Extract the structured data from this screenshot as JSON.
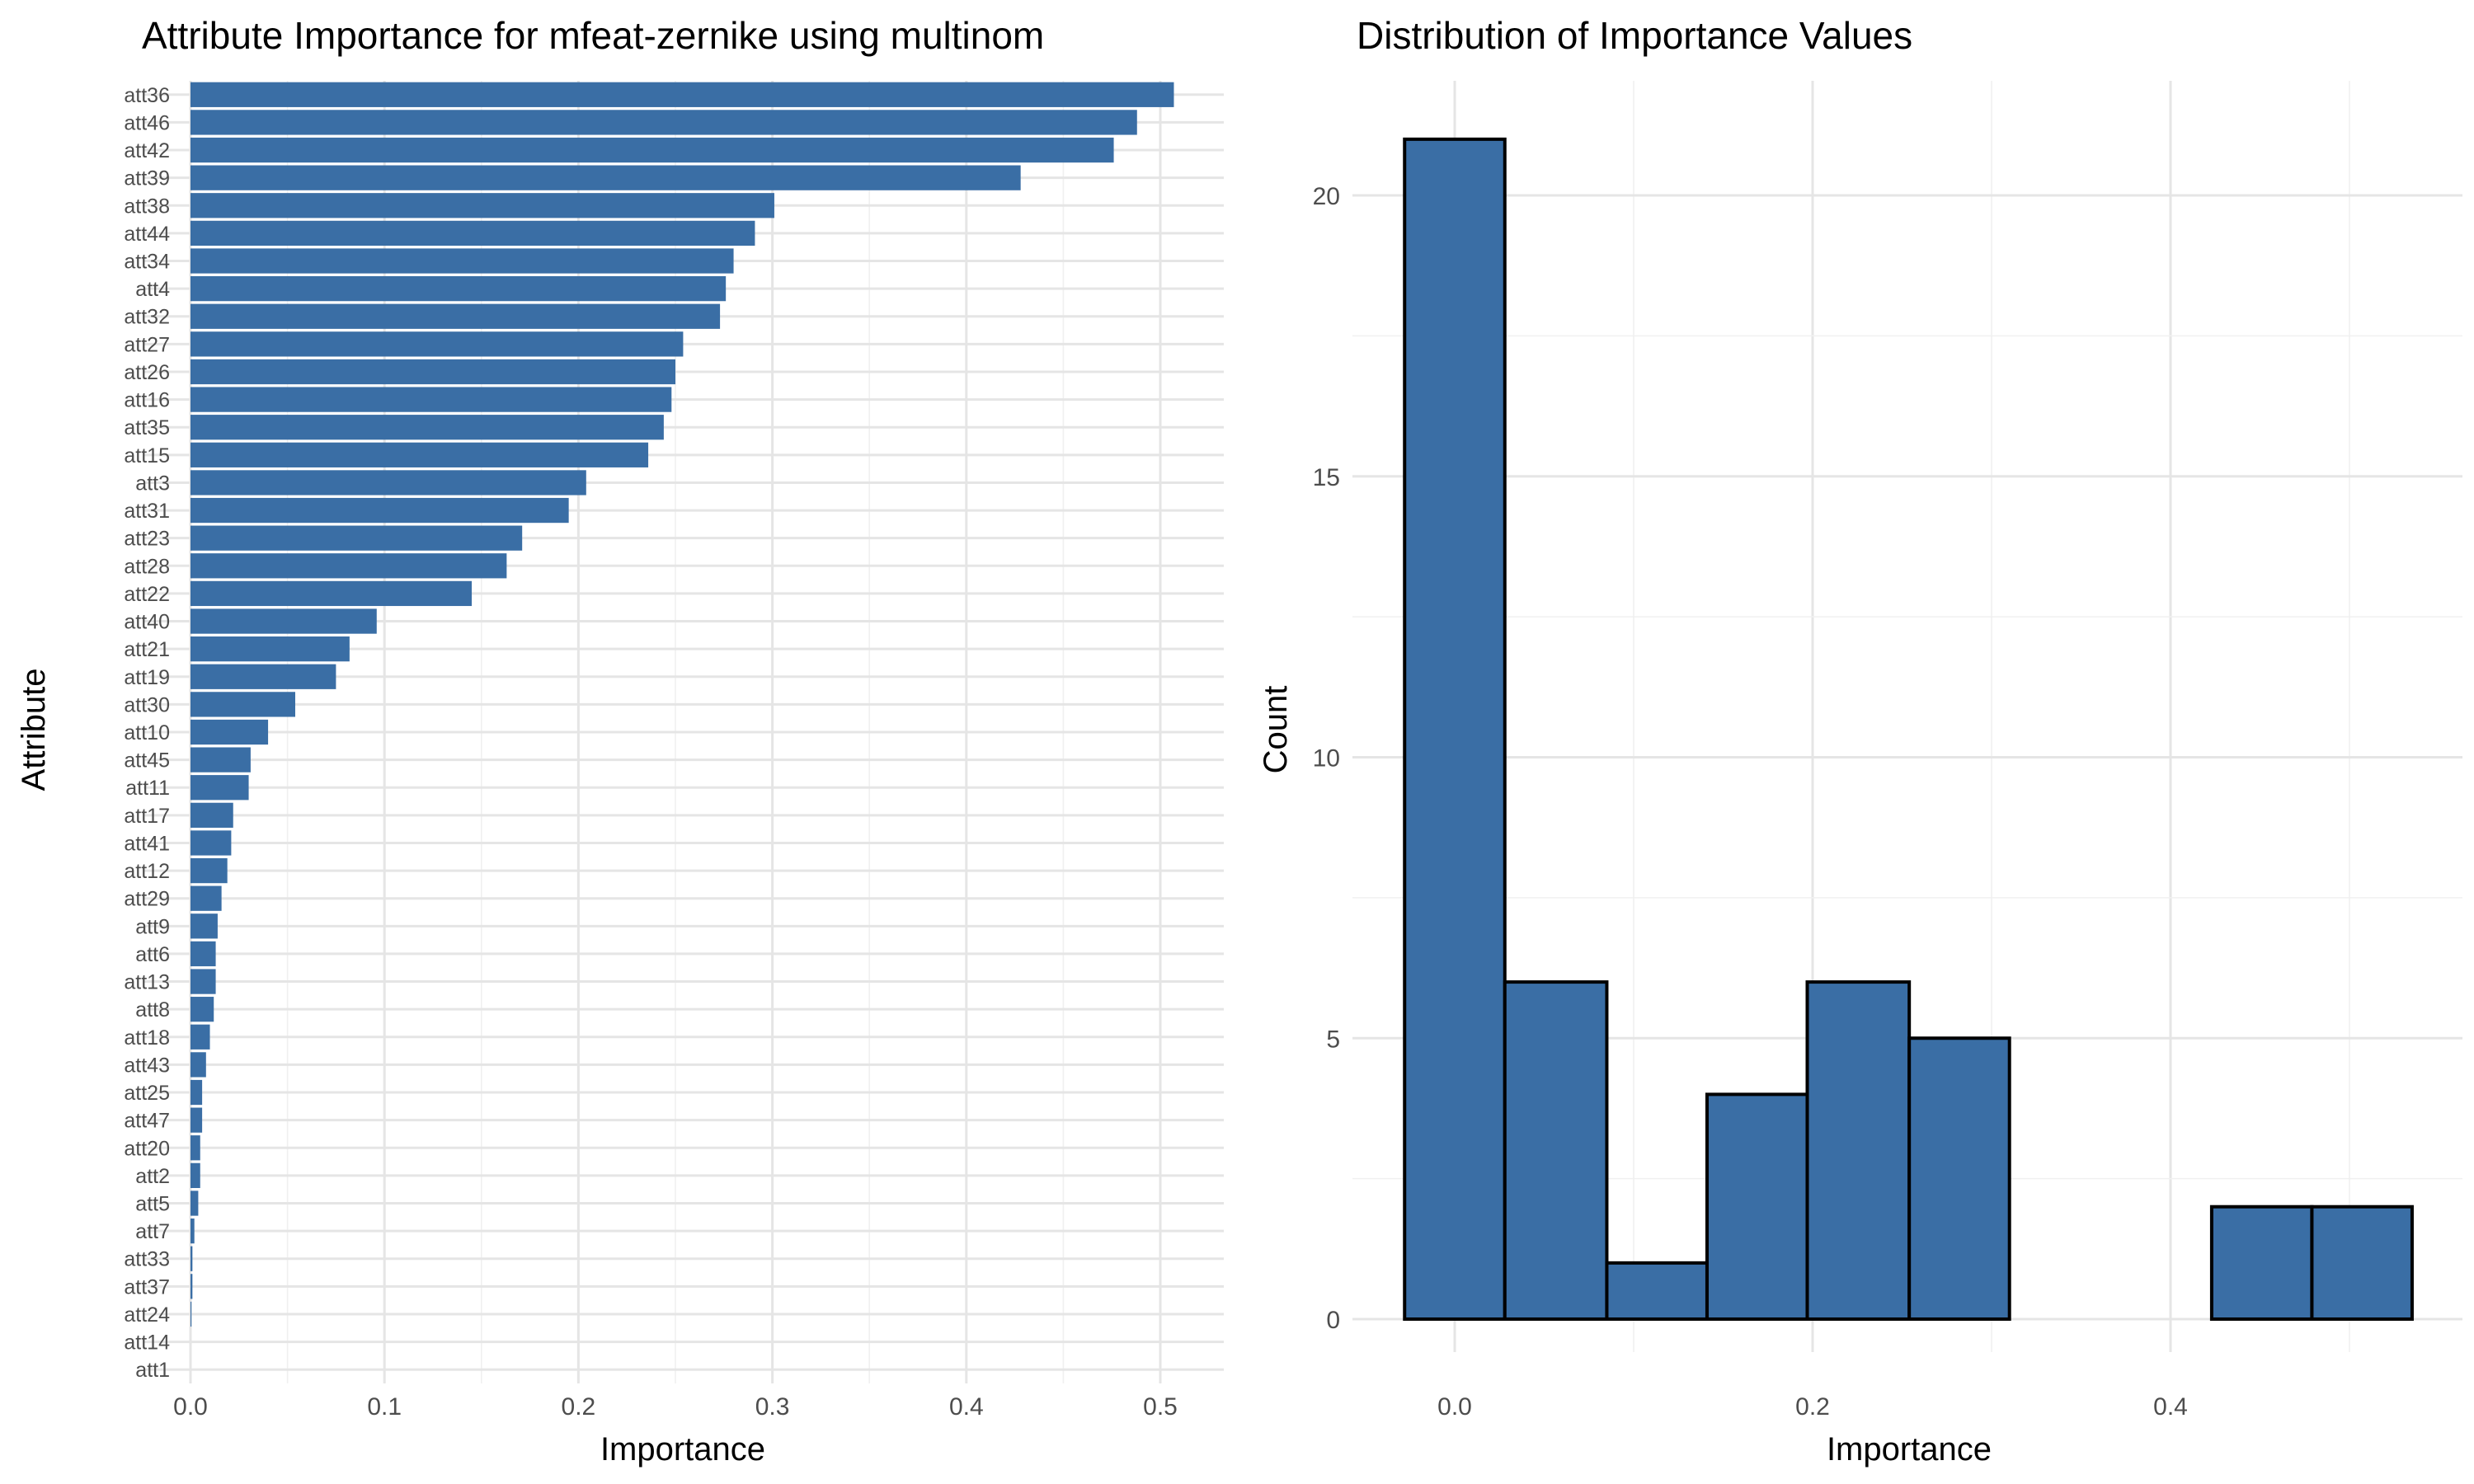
{
  "chart_data": [
    {
      "type": "bar",
      "orientation": "horizontal",
      "title": "Attribute Importance for mfeat-zernike using multinom",
      "xlabel": "Importance",
      "ylabel": "Attribute",
      "xlim": [
        0,
        0.53
      ],
      "x_ticks": [
        "0.0",
        "0.1",
        "0.2",
        "0.3",
        "0.4",
        "0.5"
      ],
      "bar_color": "#3a6ea5",
      "grid": true,
      "categories": [
        "att36",
        "att46",
        "att42",
        "att39",
        "att38",
        "att44",
        "att34",
        "att4",
        "att32",
        "att27",
        "att26",
        "att16",
        "att35",
        "att15",
        "att3",
        "att31",
        "att23",
        "att28",
        "att22",
        "att40",
        "att21",
        "att19",
        "att30",
        "att10",
        "att45",
        "att11",
        "att17",
        "att41",
        "att12",
        "att29",
        "att9",
        "att6",
        "att13",
        "att8",
        "att18",
        "att43",
        "att25",
        "att47",
        "att20",
        "att2",
        "att5",
        "att7",
        "att33",
        "att37",
        "att24",
        "att14",
        "att1"
      ],
      "values": [
        0.507,
        0.488,
        0.476,
        0.428,
        0.301,
        0.291,
        0.28,
        0.276,
        0.273,
        0.254,
        0.25,
        0.248,
        0.244,
        0.236,
        0.204,
        0.195,
        0.171,
        0.163,
        0.145,
        0.096,
        0.082,
        0.075,
        0.054,
        0.04,
        0.031,
        0.03,
        0.022,
        0.021,
        0.019,
        0.016,
        0.014,
        0.013,
        0.013,
        0.012,
        0.01,
        0.008,
        0.006,
        0.006,
        0.005,
        0.005,
        0.004,
        0.002,
        0.001,
        0.001,
        0.0005,
        0.0,
        0.0
      ]
    },
    {
      "type": "bar",
      "subtype": "histogram",
      "title": "Distribution of Importance Values",
      "xlabel": "Importance",
      "ylabel": "Count",
      "xlim": [
        -0.055,
        0.56
      ],
      "ylim": [
        0,
        22
      ],
      "x_ticks": [
        "0.0",
        "0.2",
        "0.4"
      ],
      "y_ticks": [
        "0",
        "5",
        "10",
        "15",
        "20"
      ],
      "bar_color": "#3a6ea5",
      "edge_color": "#000000",
      "grid": true,
      "bins": [
        {
          "x0": -0.028,
          "x1": 0.028,
          "count": 21
        },
        {
          "x0": 0.028,
          "x1": 0.085,
          "count": 6
        },
        {
          "x0": 0.085,
          "x1": 0.141,
          "count": 1
        },
        {
          "x0": 0.141,
          "x1": 0.197,
          "count": 4
        },
        {
          "x0": 0.197,
          "x1": 0.254,
          "count": 6
        },
        {
          "x0": 0.254,
          "x1": 0.31,
          "count": 5
        },
        {
          "x0": 0.31,
          "x1": 0.366,
          "count": 0
        },
        {
          "x0": 0.366,
          "x1": 0.423,
          "count": 0
        },
        {
          "x0": 0.423,
          "x1": 0.479,
          "count": 2
        },
        {
          "x0": 0.479,
          "x1": 0.535,
          "count": 2
        }
      ]
    }
  ]
}
